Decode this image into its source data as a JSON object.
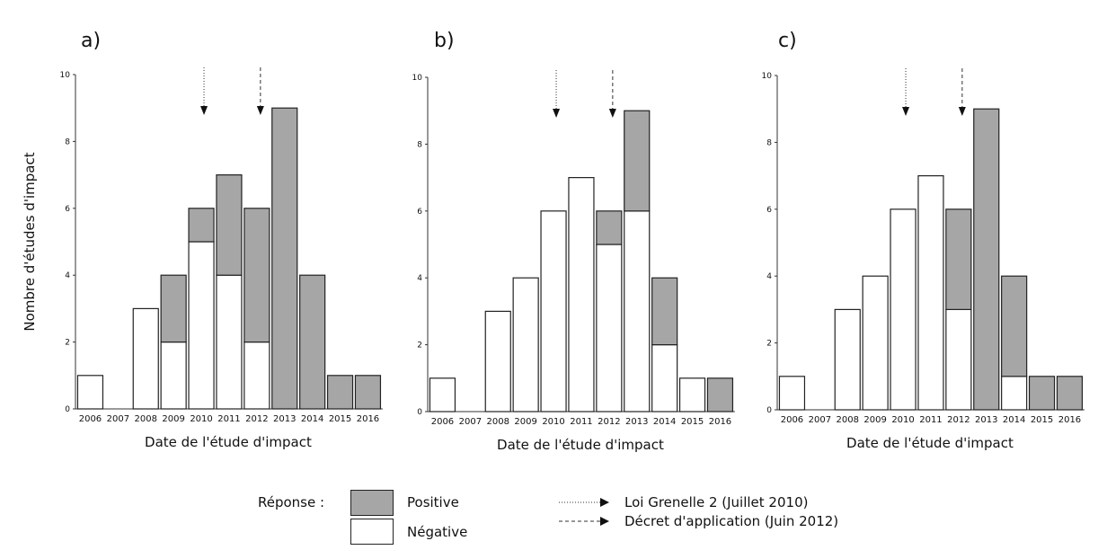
{
  "chart_data": [
    {
      "type": "bar",
      "panel_label": "a)",
      "stacked": true,
      "categories": [
        "2006",
        "2007",
        "2008",
        "2009",
        "2010",
        "2011",
        "2012",
        "2013",
        "2014",
        "2015",
        "2016"
      ],
      "series": [
        {
          "name": "Négative",
          "color": "#ffffff",
          "values": [
            1,
            0,
            3,
            2,
            5,
            4,
            2,
            0,
            0,
            0,
            0
          ]
        },
        {
          "name": "Positive",
          "color": "#a6a6a6",
          "values": [
            0,
            0,
            0,
            2,
            1,
            3,
            4,
            9,
            4,
            1,
            1
          ]
        }
      ],
      "xlabel": "Date de l'étude d'impact",
      "ylabel": "Nombre d'études d'impact",
      "ylim": [
        0,
        10
      ],
      "yticks": [
        "0",
        "2",
        "4",
        "6",
        "8",
        "10"
      ],
      "markers": [
        {
          "legend": "Loi Grenelle 2 (Juillet 2010)",
          "x": "2010",
          "style": "dotted"
        },
        {
          "legend": "Décret d'application (Juin 2012)",
          "x": "2012",
          "style": "dashed"
        }
      ]
    },
    {
      "type": "bar",
      "panel_label": "b)",
      "stacked": true,
      "categories": [
        "2006",
        "2007",
        "2008",
        "2009",
        "2010",
        "2011",
        "2012",
        "2013",
        "2014",
        "2015",
        "2016"
      ],
      "series": [
        {
          "name": "Négative",
          "color": "#ffffff",
          "values": [
            1,
            0,
            3,
            4,
            6,
            7,
            5,
            6,
            2,
            1,
            0
          ]
        },
        {
          "name": "Positive",
          "color": "#a6a6a6",
          "values": [
            0,
            0,
            0,
            0,
            0,
            0,
            1,
            3,
            2,
            0,
            1
          ]
        }
      ],
      "xlabel": "Date de l'étude d'impact",
      "ylabel": "",
      "ylim": [
        0,
        10
      ],
      "yticks": [
        "0",
        "2",
        "4",
        "6",
        "8",
        "10"
      ],
      "markers": [
        {
          "legend": "Loi Grenelle 2 (Juillet 2010)",
          "x": "2010",
          "style": "dotted"
        },
        {
          "legend": "Décret d'application (Juin 2012)",
          "x": "2012",
          "style": "dashed"
        }
      ]
    },
    {
      "type": "bar",
      "panel_label": "c)",
      "stacked": true,
      "categories": [
        "2006",
        "2007",
        "2008",
        "2009",
        "2010",
        "2011",
        "2012",
        "2013",
        "2014",
        "2015",
        "2016"
      ],
      "series": [
        {
          "name": "Négative",
          "color": "#ffffff",
          "values": [
            1,
            0,
            3,
            4,
            6,
            7,
            3,
            0,
            1,
            0,
            0
          ]
        },
        {
          "name": "Positive",
          "color": "#a6a6a6",
          "values": [
            0,
            0,
            0,
            0,
            0,
            0,
            3,
            9,
            3,
            1,
            1
          ]
        }
      ],
      "xlabel": "Date de l'étude d'impact",
      "ylabel": "",
      "ylim": [
        0,
        10
      ],
      "yticks": [
        "0",
        "2",
        "4",
        "6",
        "8",
        "10"
      ],
      "markers": [
        {
          "legend": "Loi Grenelle 2 (Juillet 2010)",
          "x": "2010",
          "style": "dotted"
        },
        {
          "legend": "Décret d'application (Juin 2012)",
          "x": "2012",
          "style": "dashed"
        }
      ]
    }
  ],
  "legend": {
    "title": "Réponse :",
    "positive_label": "Positive",
    "negative_label": "Négative",
    "positive_color": "#a6a6a6",
    "negative_color": "#ffffff",
    "marker1_label": "Loi Grenelle 2 (Juillet 2010)",
    "marker2_label": "Décret d'application (Juin 2012)"
  }
}
